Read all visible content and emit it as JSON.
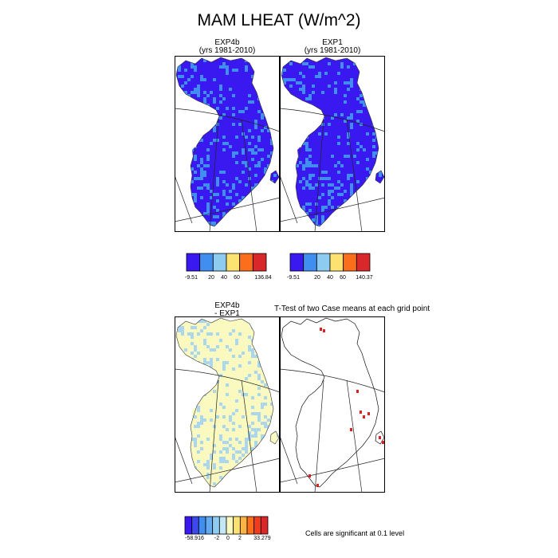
{
  "title": "MAM LHEAT (W/m^2)",
  "panels": {
    "exp4b": {
      "name": "EXP4b",
      "years": "(yrs 1981-2010)"
    },
    "exp1": {
      "name": "EXP1",
      "years": "(yrs 1981-2010)"
    },
    "diff": {
      "line1": "EXP4b",
      "line2": "- EXP1"
    },
    "ttest": {
      "title": "T-Test of two Case means at each grid point"
    }
  },
  "colorbars": {
    "exp4b": {
      "colors": [
        "#3a18f0",
        "#3f8ef0",
        "#8dccf0",
        "#fce270",
        "#fa6e1c",
        "#d9282a"
      ],
      "labels": [
        "-9.51",
        "20",
        "40",
        "60",
        "136.84"
      ]
    },
    "exp1": {
      "colors": [
        "#3a18f0",
        "#3f8ef0",
        "#8dccf0",
        "#fce270",
        "#fa6e1c",
        "#d9282a"
      ],
      "labels": [
        "-9.51",
        "20",
        "40",
        "60",
        "140.37"
      ]
    },
    "diff": {
      "colors": [
        "#3a18f0",
        "#3d48f0",
        "#3f8ef0",
        "#64aaf0",
        "#8dccf0",
        "#c5e6f4",
        "#fafac0",
        "#fce270",
        "#fab446",
        "#fa6e1c",
        "#f03c1e",
        "#d9282a"
      ],
      "labels": [
        "-58.916",
        "-2",
        "0",
        "2",
        "33.279"
      ]
    }
  },
  "significance_note": "Cells are significant at 0.1 level",
  "colors": {
    "deep_blue": "#3a18f0",
    "mid_blue": "#3f8ef0",
    "light_yellow": "#fafac0",
    "light_blue": "#aad6f0",
    "significant": "#e0201e"
  }
}
